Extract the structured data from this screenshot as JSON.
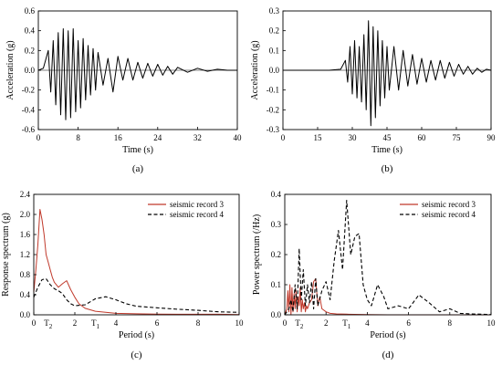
{
  "chart_data": [
    {
      "panel": "(a)",
      "type": "line",
      "xlabel": "Time (s)",
      "ylabel": "Acceleration (g)",
      "xlim": [
        0,
        40
      ],
      "ylim": [
        -0.6,
        0.6
      ],
      "xticks": [
        0,
        8,
        16,
        24,
        32,
        40
      ],
      "yticks": [
        -0.6,
        -0.4,
        -0.2,
        0.0,
        0.2,
        0.4,
        0.6
      ],
      "ytick_labels": [
        "-0.6",
        "-0.4",
        "-0.2",
        "0.0",
        "0.2",
        "0.4",
        "0.6"
      ],
      "peak_positive": 0.43,
      "peak_negative": -0.5,
      "series": [
        {
          "color": "#000000",
          "dash": "solid",
          "x": [
            0,
            1,
            2,
            2.5,
            3,
            3.5,
            4,
            4.5,
            5,
            5.5,
            6,
            6.5,
            7,
            7.5,
            8,
            8.5,
            9,
            9.5,
            10,
            10.5,
            11,
            11.5,
            12,
            13,
            14,
            15,
            16,
            17,
            18,
            19,
            20,
            21,
            22,
            23,
            24,
            25,
            26,
            27,
            28,
            30,
            32,
            34,
            36,
            38,
            40
          ],
          "y": [
            0,
            0.02,
            0.2,
            -0.22,
            0.3,
            -0.35,
            0.38,
            -0.45,
            0.42,
            -0.5,
            0.4,
            -0.48,
            0.42,
            -0.42,
            0.3,
            -0.38,
            0.32,
            -0.3,
            0.25,
            -0.25,
            0.22,
            -0.2,
            0.18,
            -0.15,
            0.12,
            -0.22,
            0.14,
            -0.1,
            0.12,
            -0.1,
            0.08,
            -0.08,
            0.07,
            -0.06,
            0.06,
            -0.05,
            0.04,
            -0.04,
            0.03,
            -0.02,
            0.02,
            -0.01,
            0.01,
            0,
            0
          ]
        }
      ]
    },
    {
      "panel": "(b)",
      "type": "line",
      "xlabel": "Time (s)",
      "ylabel": "Acceleration (g)",
      "xlim": [
        0,
        90
      ],
      "ylim": [
        -0.3,
        0.3
      ],
      "xticks": [
        0,
        15,
        30,
        45,
        60,
        75,
        90
      ],
      "yticks": [
        -0.3,
        -0.2,
        -0.1,
        0.0,
        0.1,
        0.2,
        0.3
      ],
      "ytick_labels": [
        "-0.3",
        "-0.2",
        "-0.1",
        "0.0",
        "0.1",
        "0.2",
        "0.3"
      ],
      "peak_positive": 0.25,
      "peak_negative": -0.28,
      "series": [
        {
          "color": "#000000",
          "dash": "solid",
          "x": [
            0,
            10,
            20,
            25,
            27,
            28,
            29,
            30,
            31,
            32,
            33,
            34,
            35,
            36,
            37,
            38,
            39,
            40,
            41,
            42,
            43,
            44,
            45,
            46,
            48,
            50,
            52,
            54,
            56,
            58,
            60,
            62,
            64,
            66,
            68,
            70,
            72,
            74,
            76,
            78,
            80,
            82,
            84,
            86,
            88,
            90
          ],
          "y": [
            0,
            0,
            0,
            0.005,
            0.05,
            -0.06,
            0.12,
            -0.12,
            0.15,
            -0.14,
            0.12,
            -0.16,
            0.18,
            -0.2,
            0.25,
            -0.28,
            0.22,
            -0.24,
            0.2,
            -0.18,
            0.15,
            -0.14,
            0.12,
            -0.1,
            0.12,
            -0.1,
            0.1,
            -0.08,
            0.08,
            -0.07,
            0.06,
            -0.06,
            0.05,
            -0.05,
            0.05,
            -0.04,
            0.04,
            -0.03,
            0.03,
            -0.02,
            0.02,
            -0.02,
            0.01,
            -0.01,
            0.005,
            0
          ]
        }
      ]
    },
    {
      "panel": "(c)",
      "type": "line",
      "xlabel": "Period (s)",
      "ylabel": "Response spectrum (g)",
      "xlim": [
        0,
        10
      ],
      "ylim": [
        0,
        2.4
      ],
      "xticks": [
        0,
        2,
        4,
        6,
        8,
        10
      ],
      "yticks": [
        0.0,
        0.4,
        0.8,
        1.2,
        1.6,
        2.0,
        2.4
      ],
      "ytick_labels": [
        "0.0",
        "0.4",
        "0.8",
        "1.2",
        "1.6",
        "2.0",
        "2.4"
      ],
      "period_marks": [
        {
          "label": "T",
          "sub": "2",
          "x": 0.7
        },
        {
          "label": "T",
          "sub": "1",
          "x": 3.0
        }
      ],
      "legend_position": "top-right",
      "series": [
        {
          "name": "seismic record 3",
          "color": "#c0392b",
          "dash": "solid",
          "x": [
            0,
            0.1,
            0.2,
            0.3,
            0.4,
            0.5,
            0.6,
            0.7,
            0.8,
            0.9,
            1.0,
            1.2,
            1.4,
            1.6,
            1.8,
            2.0,
            2.2,
            2.5,
            3.0,
            3.5,
            4.0,
            5.0,
            6.0,
            7.0,
            8.0,
            9.0,
            10.0
          ],
          "y": [
            0.45,
            0.9,
            1.4,
            2.1,
            1.9,
            1.6,
            1.2,
            1.05,
            0.9,
            0.75,
            0.65,
            0.55,
            0.62,
            0.68,
            0.5,
            0.35,
            0.22,
            0.13,
            0.07,
            0.05,
            0.03,
            0.02,
            0.015,
            0.01,
            0.01,
            0.01,
            0.005
          ]
        },
        {
          "name": "seismic record 4",
          "color": "#000000",
          "dash": "dashed",
          "x": [
            0,
            0.2,
            0.4,
            0.6,
            0.8,
            1.0,
            1.2,
            1.4,
            1.6,
            1.8,
            2.0,
            2.5,
            3.0,
            3.5,
            4.0,
            4.5,
            5.0,
            6.0,
            7.0,
            8.0,
            9.0,
            10.0
          ],
          "y": [
            0.35,
            0.55,
            0.7,
            0.72,
            0.6,
            0.52,
            0.48,
            0.42,
            0.3,
            0.22,
            0.18,
            0.2,
            0.32,
            0.36,
            0.3,
            0.22,
            0.17,
            0.14,
            0.11,
            0.09,
            0.06,
            0.05
          ]
        }
      ]
    },
    {
      "panel": "(d)",
      "type": "line",
      "xlabel": "Period (s)",
      "ylabel": "Power spectrum (/Hz)",
      "xlim": [
        0,
        10
      ],
      "ylim": [
        0,
        0.4
      ],
      "xticks": [
        0,
        2,
        4,
        6,
        8,
        10
      ],
      "yticks": [
        0.0,
        0.1,
        0.2,
        0.3,
        0.4
      ],
      "ytick_labels": [
        "0.0",
        "0.1",
        "0.2",
        "0.3",
        "0.4"
      ],
      "period_marks": [
        {
          "label": "T",
          "sub": "2",
          "x": 0.7
        },
        {
          "label": "T",
          "sub": "1",
          "x": 3.0
        }
      ],
      "legend_position": "top-right",
      "series": [
        {
          "name": "seismic record 3",
          "color": "#c0392b",
          "dash": "solid",
          "x": [
            0,
            0.1,
            0.15,
            0.2,
            0.25,
            0.3,
            0.35,
            0.4,
            0.45,
            0.5,
            0.55,
            0.6,
            0.65,
            0.7,
            0.75,
            0.8,
            0.85,
            0.9,
            0.95,
            1.0,
            1.05,
            1.1,
            1.2,
            1.3,
            1.4,
            1.5,
            1.6,
            1.7,
            1.8,
            2.0,
            2.2,
            2.5,
            3.0,
            4.0,
            5.0,
            6.0,
            8.0,
            10.0
          ],
          "y": [
            0,
            0.02,
            0.08,
            0.01,
            0.1,
            0.0,
            0.09,
            0.01,
            0.07,
            0.02,
            0.08,
            0.01,
            0.06,
            0.03,
            0.09,
            0.01,
            0.05,
            0.02,
            0.04,
            0.01,
            0.03,
            0.02,
            0.04,
            0.05,
            0.11,
            0.12,
            0.03,
            0.06,
            0.02,
            0.01,
            0.005,
            0.003,
            0.002,
            0.001,
            0.0,
            0.0,
            0.0,
            0.0
          ]
        },
        {
          "name": "seismic record 4",
          "color": "#000000",
          "dash": "dashed",
          "x": [
            0,
            0.2,
            0.3,
            0.4,
            0.5,
            0.6,
            0.7,
            0.8,
            0.9,
            1.0,
            1.1,
            1.2,
            1.3,
            1.4,
            1.5,
            1.6,
            1.8,
            2.0,
            2.2,
            2.4,
            2.6,
            2.8,
            3.0,
            3.2,
            3.4,
            3.6,
            3.8,
            4.0,
            4.2,
            4.5,
            4.8,
            5.0,
            5.5,
            6.0,
            6.5,
            7.0,
            7.5,
            8.0,
            8.5,
            9.0,
            9.5,
            10.0
          ],
          "y": [
            0,
            0.02,
            0.05,
            0.01,
            0.1,
            0.02,
            0.22,
            0.05,
            0.15,
            0.03,
            0.1,
            0.04,
            0.11,
            0.02,
            0.12,
            0.03,
            0.08,
            0.11,
            0.05,
            0.18,
            0.28,
            0.15,
            0.38,
            0.2,
            0.26,
            0.27,
            0.1,
            0.05,
            0.03,
            0.1,
            0.06,
            0.02,
            0.03,
            0.02,
            0.066,
            0.04,
            0.01,
            0.02,
            0.005,
            0.003,
            0.002,
            0.001
          ]
        }
      ]
    }
  ]
}
